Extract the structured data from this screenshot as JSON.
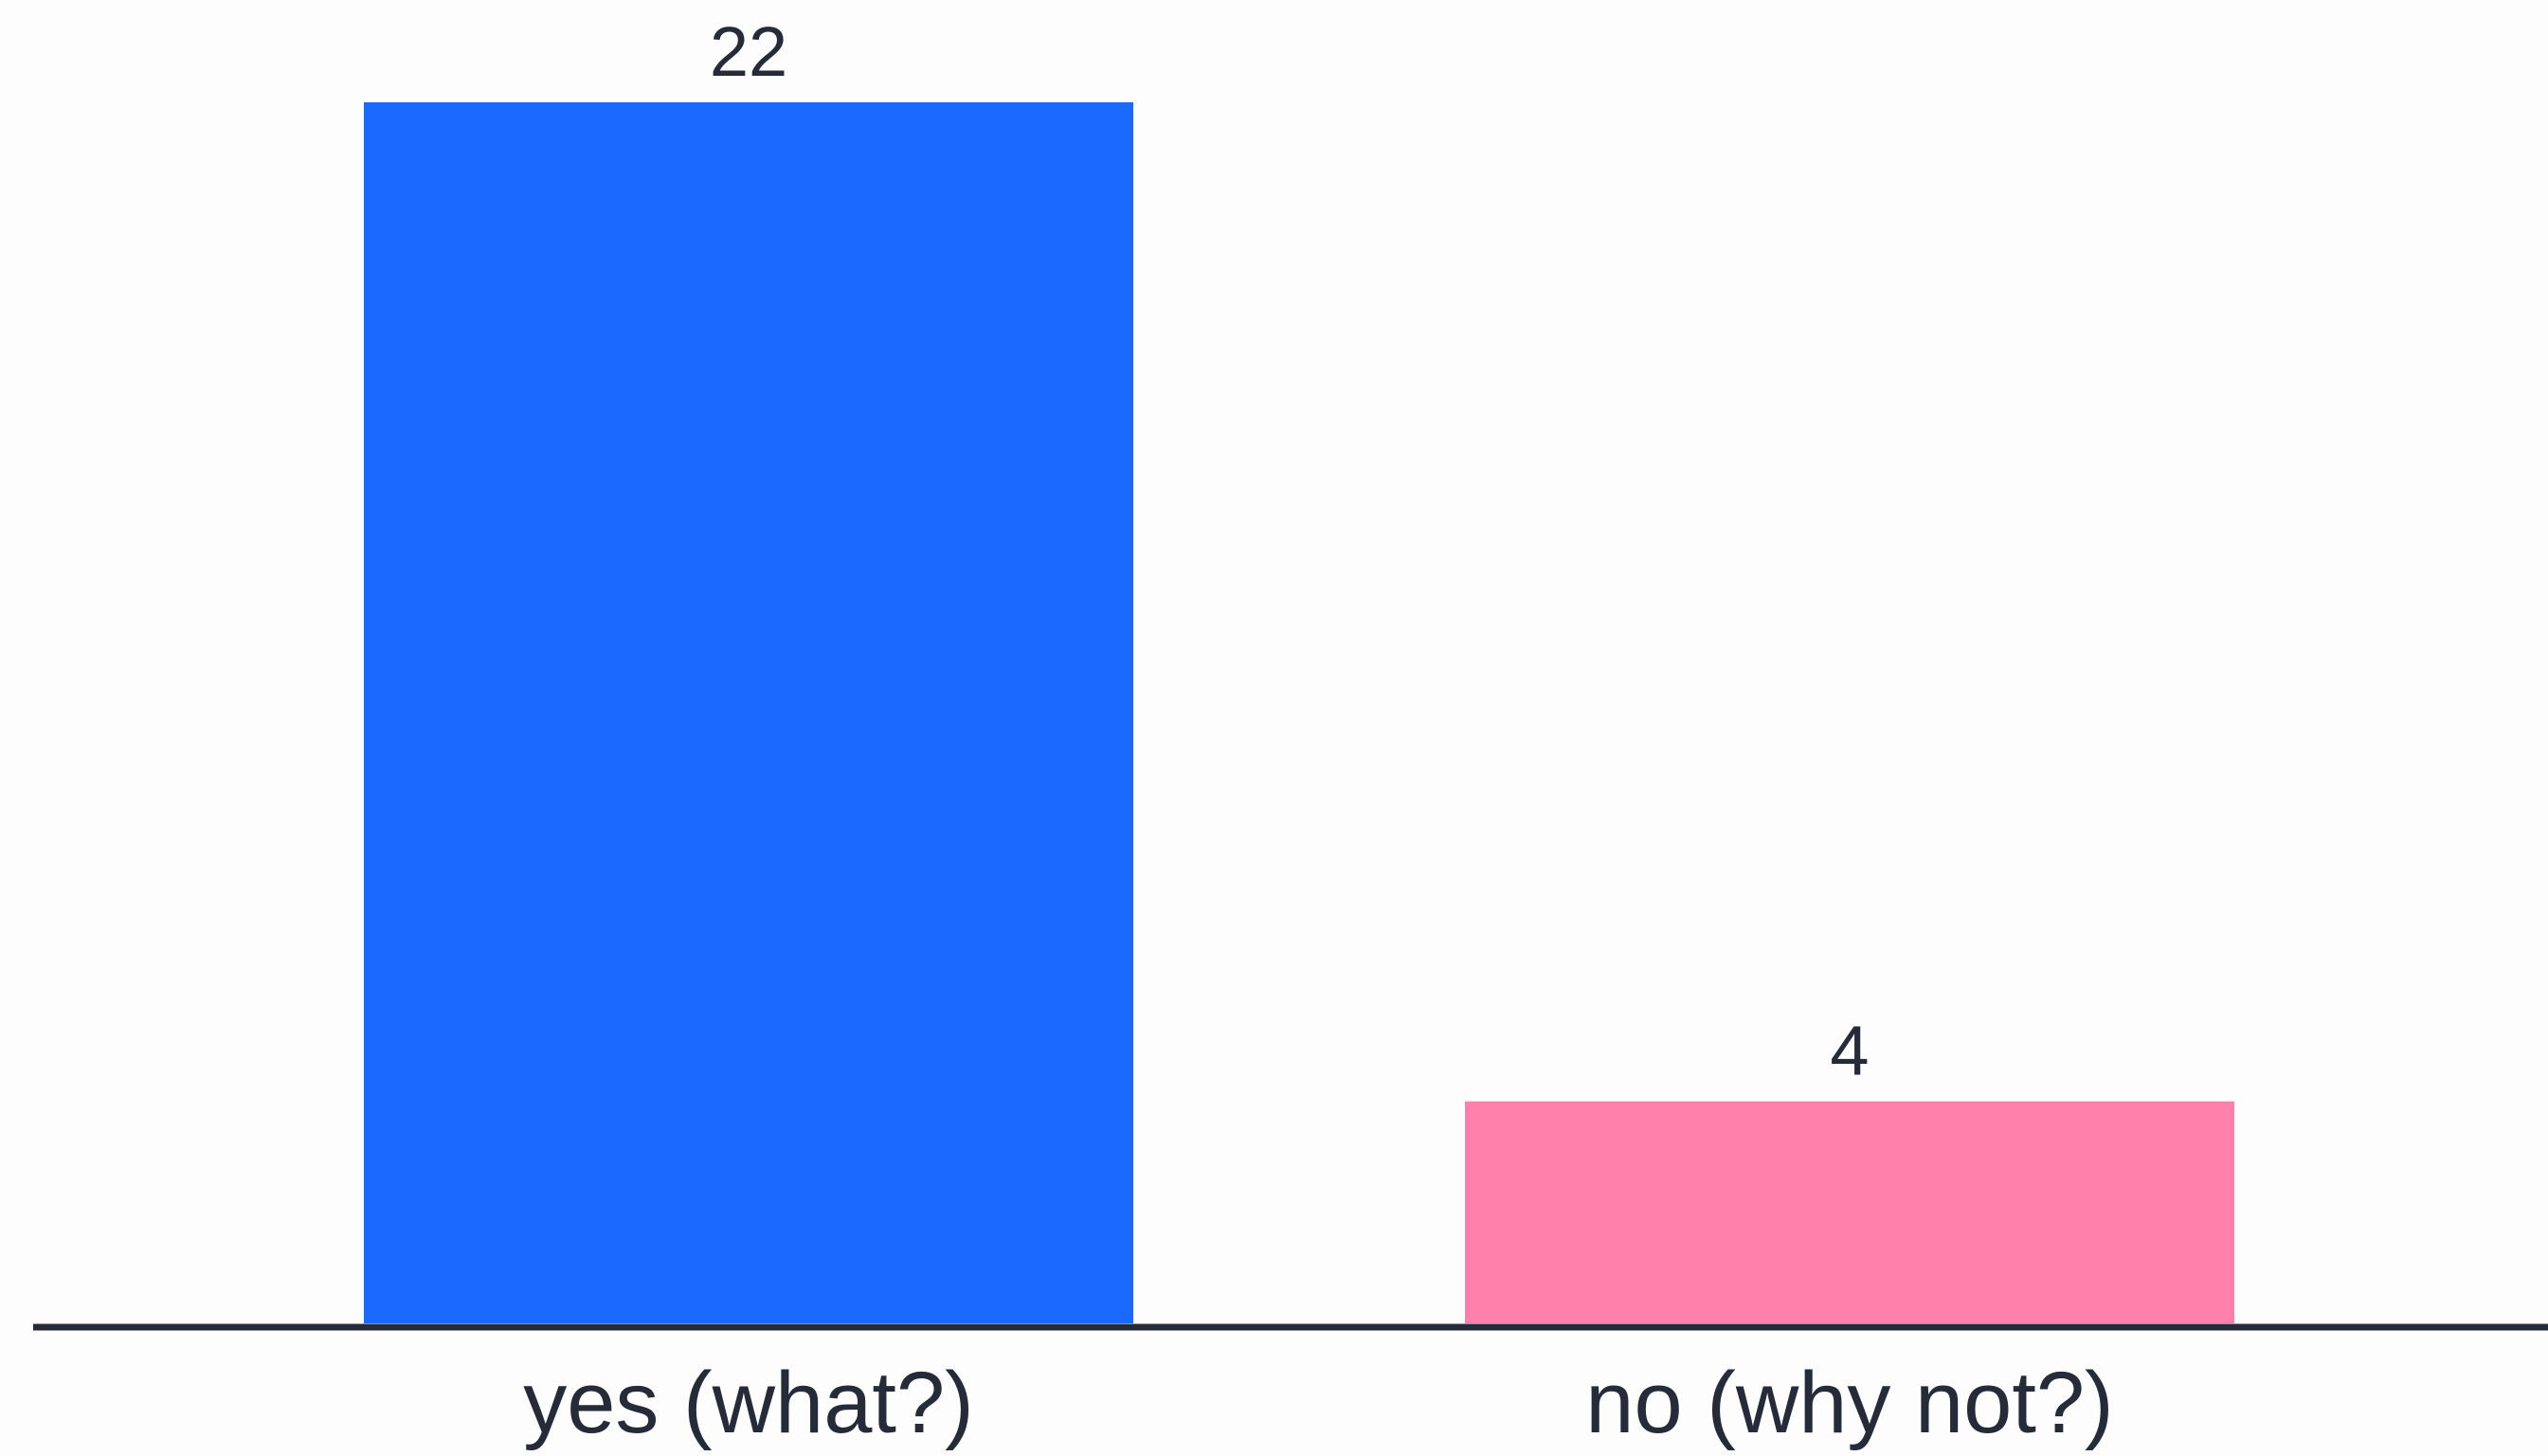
{
  "chart_data": {
    "type": "bar",
    "categories": [
      "yes (what?)",
      "no (why not?)"
    ],
    "values": [
      22,
      4
    ],
    "colors": [
      "#1b69ff",
      "#ff80aa"
    ],
    "data_labels": [
      "22",
      "4"
    ],
    "ylim": [
      0,
      22
    ],
    "axis_color": "#262b3a",
    "grid": false,
    "legend": "none"
  }
}
